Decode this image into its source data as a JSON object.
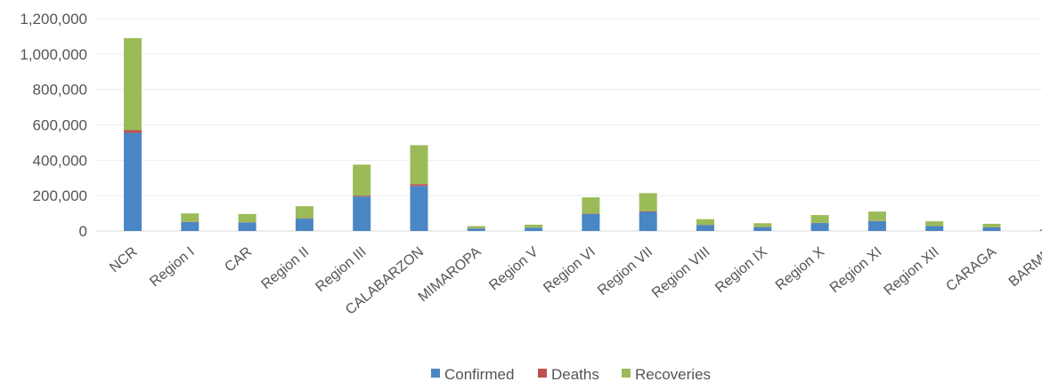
{
  "chart_data": {
    "type": "bar",
    "stacked": true,
    "categories": [
      "NCR",
      "Region I",
      "CAR",
      "Region II",
      "Region III",
      "CALABARZON",
      "MIMAROPA",
      "Region V",
      "Region VI",
      "Region VII",
      "Region VIII",
      "Region IX",
      "Region X",
      "Region XI",
      "Region XII",
      "CARAGA",
      "BARMM"
    ],
    "series": [
      {
        "name": "Confirmed",
        "color": "#4a86c4",
        "values": [
          555000,
          50000,
          48000,
          70000,
          195000,
          255000,
          14000,
          18000,
          96000,
          108000,
          34000,
          22000,
          45000,
          55000,
          28000,
          20000,
          5000
        ]
      },
      {
        "name": "Deaths",
        "color": "#c0504d",
        "values": [
          15000,
          1500,
          1000,
          2000,
          5000,
          10000,
          500,
          700,
          2000,
          4000,
          800,
          900,
          1000,
          1500,
          700,
          600,
          300
        ]
      },
      {
        "name": "Recoveries",
        "color": "#9bbb59",
        "values": [
          520000,
          48000,
          47000,
          68000,
          175000,
          220000,
          13000,
          17000,
          92000,
          102000,
          32000,
          21000,
          44000,
          53000,
          26000,
          20000,
          4700
        ]
      }
    ],
    "yticks": [
      "0",
      "200,000",
      "400,000",
      "600,000",
      "800,000",
      "1,000,000",
      "1,200,000"
    ],
    "ylim": [
      0,
      1200000
    ],
    "title": "",
    "xlabel": "",
    "ylabel": "",
    "legend_position": "bottom",
    "grid": true
  }
}
